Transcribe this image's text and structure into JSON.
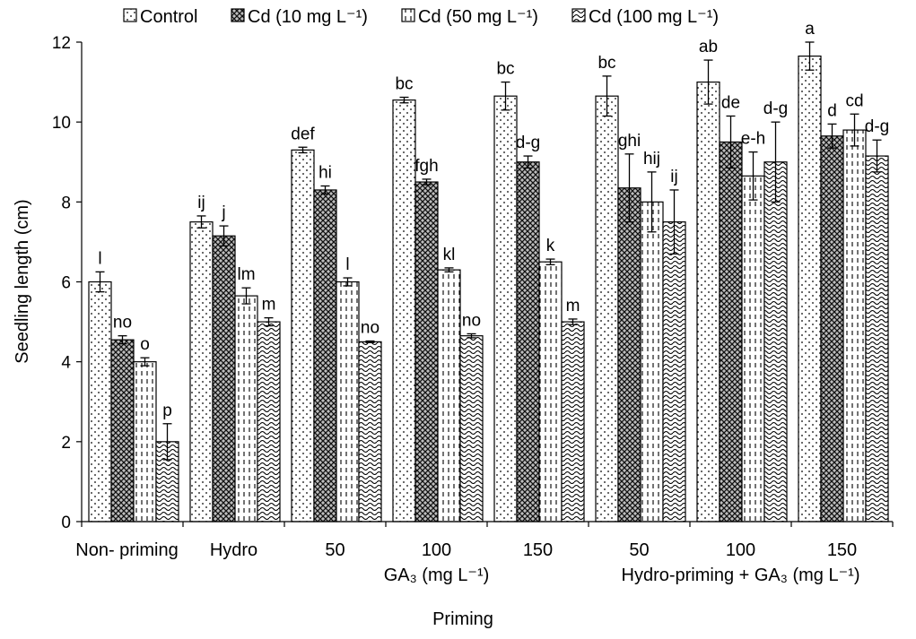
{
  "chart_data": {
    "type": "bar",
    "xlabel": "Priming",
    "ylabel": "Seedling length (cm)",
    "ylim": [
      0,
      12
    ],
    "yticks": [
      0,
      2,
      4,
      6,
      8,
      10,
      12
    ],
    "grid": false,
    "legend_position": "top",
    "categories": [
      "Non- priming",
      "Hydro",
      "50",
      "100",
      "150",
      "50",
      "100",
      "150"
    ],
    "group_labels": [
      {
        "label": "GA₃ (mg L⁻¹)",
        "span": [
          2,
          4
        ]
      },
      {
        "label": "Hydro-priming + GA₃ (mg L⁻¹)",
        "span": [
          5,
          7
        ]
      }
    ],
    "series": [
      {
        "name": "Control",
        "pattern": "dots",
        "values": [
          6.0,
          7.5,
          9.3,
          10.55,
          10.65,
          10.65,
          11.0,
          11.65
        ],
        "errors": [
          0.25,
          0.15,
          0.07,
          0.07,
          0.35,
          0.5,
          0.55,
          0.35
        ],
        "letters": [
          "l",
          "ij",
          "def",
          "bc",
          "bc",
          "bc",
          "ab",
          "a"
        ]
      },
      {
        "name": "Cd (10 mg L⁻¹)",
        "pattern": "crosshatch",
        "values": [
          4.55,
          7.15,
          8.3,
          8.5,
          9.0,
          8.35,
          9.5,
          9.65
        ],
        "errors": [
          0.1,
          0.25,
          0.1,
          0.07,
          0.15,
          0.85,
          0.65,
          0.3
        ],
        "letters": [
          "no",
          "j",
          "hi",
          "fgh",
          "d-g",
          "ghi",
          "de",
          "d"
        ]
      },
      {
        "name": "Cd (50 mg L⁻¹)",
        "pattern": "dashes",
        "values": [
          4.0,
          5.65,
          6.0,
          6.3,
          6.5,
          8.0,
          8.65,
          9.8
        ],
        "errors": [
          0.1,
          0.2,
          0.1,
          0.05,
          0.07,
          0.75,
          0.6,
          0.4
        ],
        "letters": [
          "o",
          "lm",
          "l",
          "kl",
          "k",
          "hij",
          "e-h",
          "cd"
        ]
      },
      {
        "name": "Cd (100 mg L⁻¹)",
        "pattern": "waves",
        "values": [
          2.0,
          5.0,
          4.5,
          4.65,
          5.0,
          7.5,
          9.0,
          9.15
        ],
        "errors": [
          0.45,
          0.1,
          0.02,
          0.05,
          0.07,
          0.8,
          1.0,
          0.4
        ],
        "letters": [
          "p",
          "m",
          "no",
          "no",
          "m",
          "ij",
          "d-g",
          "d-g"
        ]
      }
    ]
  }
}
